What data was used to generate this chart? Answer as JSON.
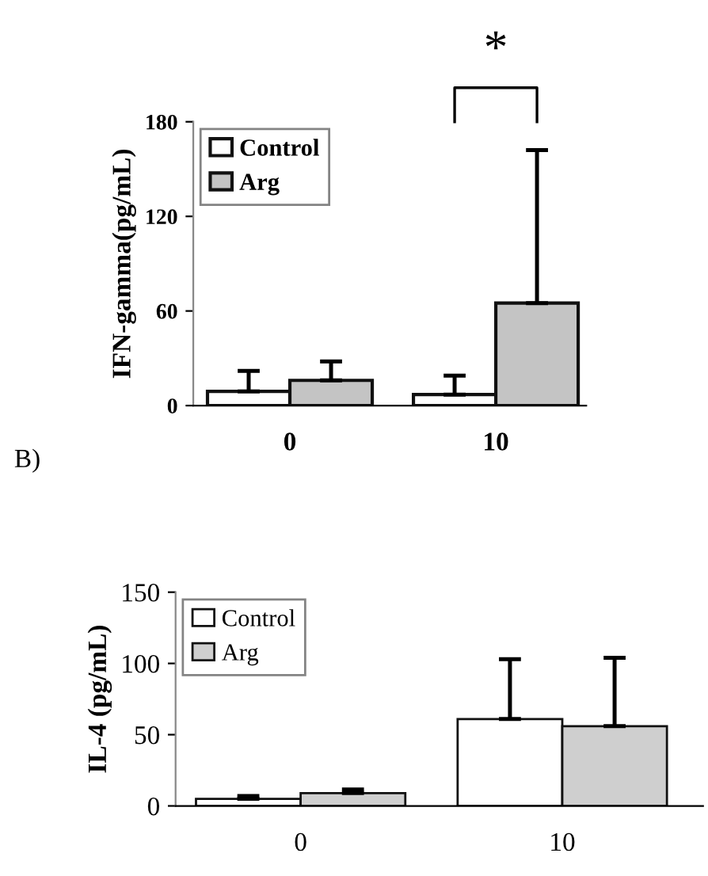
{
  "chart_data": [
    {
      "type": "bar",
      "ylabel": "IFN-gamma(pg/mL)",
      "categories": [
        "0",
        "10"
      ],
      "series": [
        {
          "name": "Control",
          "color": "#ffffff",
          "values": [
            9,
            7
          ],
          "errors": [
            [
              9,
              22
            ],
            [
              7,
              19
            ]
          ]
        },
        {
          "name": "Arg",
          "color": "#c4c4c4",
          "values": [
            16,
            65
          ],
          "errors": [
            [
              16,
              28
            ],
            [
              65,
              162
            ]
          ]
        }
      ],
      "ylim": [
        0,
        180
      ],
      "yticks": [
        0,
        60,
        120,
        180
      ],
      "legend": "top left",
      "grid": false,
      "annotations": [
        "*"
      ]
    },
    {
      "type": "bar",
      "ylabel": "IL-4 (pg/mL)",
      "categories": [
        "0",
        "10"
      ],
      "series": [
        {
          "name": "Control",
          "color": "#ffffff",
          "values": [
            5,
            61
          ],
          "errors": [
            [
              5,
              7
            ],
            [
              61,
              103
            ]
          ]
        },
        {
          "name": "Arg",
          "color": "#cfcfcf",
          "values": [
            9,
            56
          ],
          "errors": [
            [
              9,
              11.5
            ],
            [
              56,
              104
            ]
          ]
        }
      ],
      "ylim": [
        0,
        150
      ],
      "yticks": [
        0,
        50,
        100,
        150
      ],
      "legend": "top left",
      "grid": false,
      "title": "B)"
    }
  ]
}
